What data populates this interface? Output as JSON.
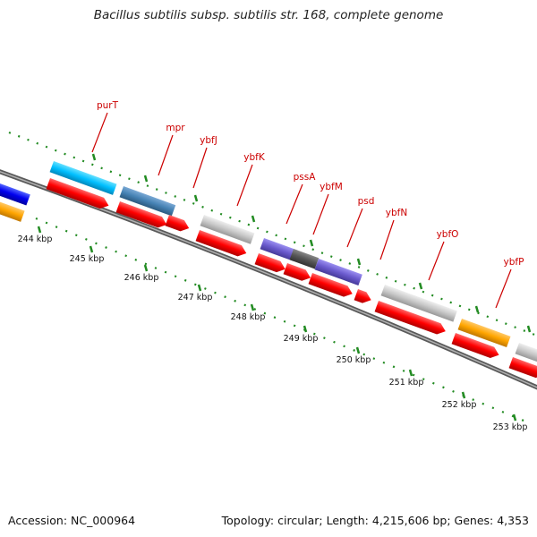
{
  "title": "Bacillus subtilis subsp. subtilis str. 168, complete genome",
  "footer": {
    "accession": "Accession: NC_000964",
    "summary": "Topology: circular; Length: 4,215,606 bp; Genes: 4,353"
  },
  "scale_labels": [
    "244 kbp",
    "245 kbp",
    "246 kbp",
    "247 kbp",
    "248 kbp",
    "249 kbp",
    "250 kbp",
    "251 kbp",
    "252 kbp",
    "253 kbp"
  ],
  "gene_labels": [
    "purT",
    "mpr",
    "ybfJ",
    "ybfK",
    "pssA",
    "ybfM",
    "psd",
    "ybfN",
    "ybfO",
    "ybfP"
  ],
  "colors": {
    "backbone": "#808080",
    "cds": "#ff0000",
    "gene_label": "#cc0000",
    "tick": "#228B22",
    "cyan": "#00bfff",
    "steelblue": "#4682b4",
    "gray": "#c0c0c0",
    "slateblue": "#6a5acd",
    "orange": "#ffa500",
    "blue": "#0000ee"
  }
}
